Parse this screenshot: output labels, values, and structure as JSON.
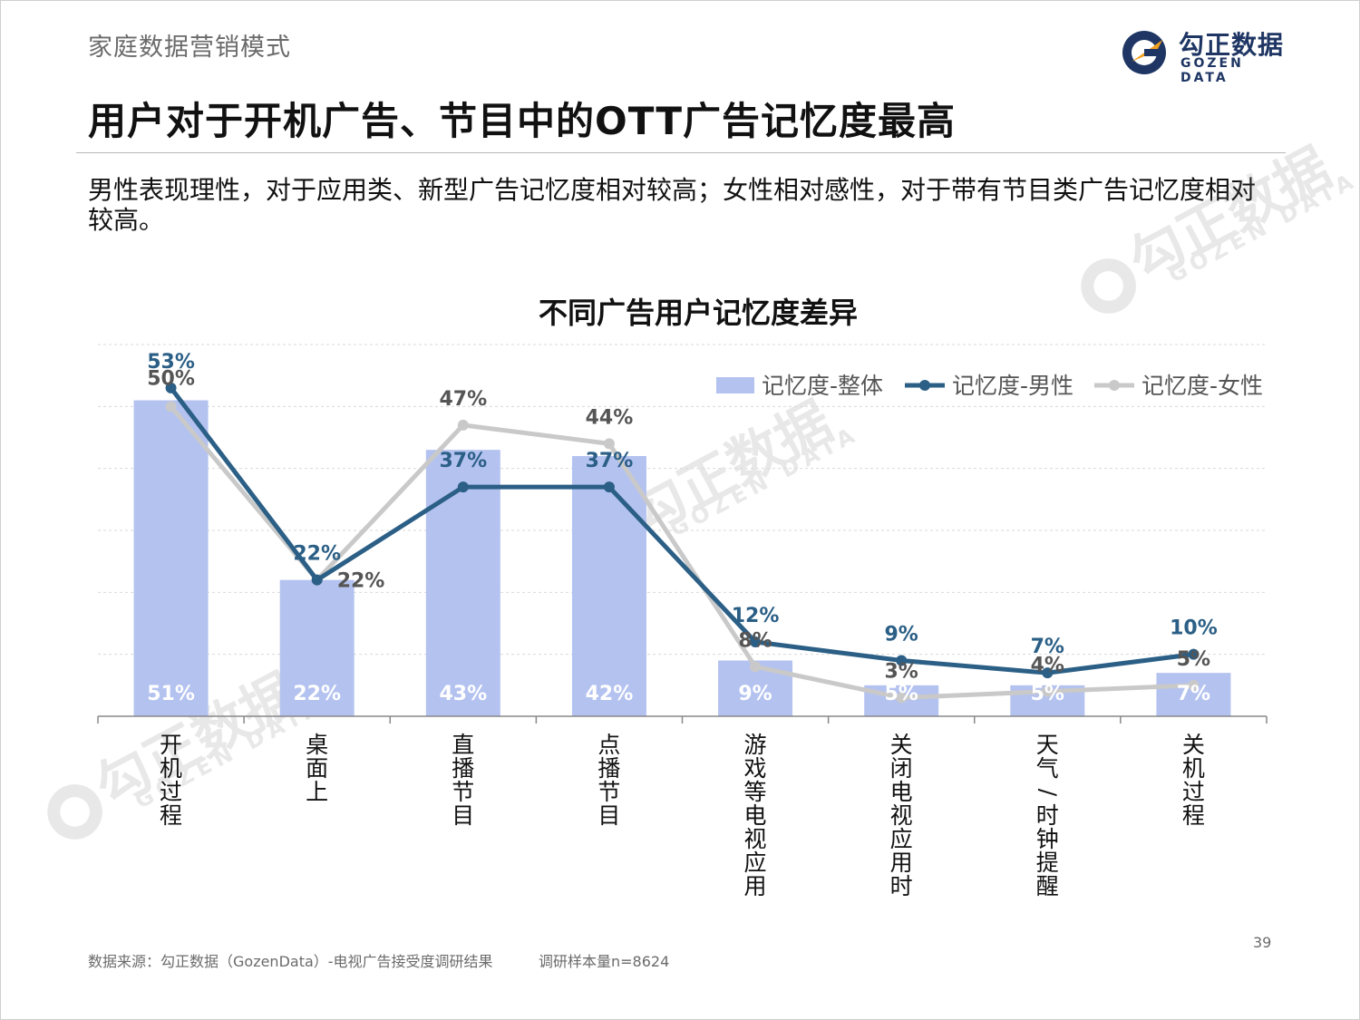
{
  "header": {
    "section_label": "家庭数据营销模式",
    "logo_cn": "勾正数据",
    "logo_en": "GOZEN DATA"
  },
  "title": "用户对于开机广告、节目中的OTT广告记忆度最高",
  "description": "男性表现理性，对于应用类、新型广告记忆度相对较高；女性相对感性，对于带有节目类广告记忆度相对较高。",
  "watermark": {
    "cn": "勾正数据",
    "en": "GOZEN DATA"
  },
  "footer": {
    "source": "数据来源：勾正数据（GozenData）-电视广告接受度调研结果",
    "sample": "调研样本量n=8624",
    "page_number": "39"
  },
  "colors": {
    "bar": "#b4c2f0",
    "male": "#2b5f86",
    "female": "#c9c9c9",
    "brand": "#1f3664",
    "brand_accent": "#f0a020"
  },
  "chart_data": {
    "type": "bar",
    "title": "不同广告用户记忆度差异",
    "categories": [
      "开机过程",
      "桌面上",
      "直播节目",
      "点播节目",
      "游戏等电视应用",
      "关闭电视应用时",
      "天气/时钟提醒",
      "关机过程"
    ],
    "series": [
      {
        "name": "记忆度-整体",
        "type": "bar",
        "values": [
          51,
          22,
          43,
          42,
          9,
          5,
          5,
          7
        ],
        "labels": [
          "51%",
          "22%",
          "43%",
          "42%",
          "9%",
          "5%",
          "5%",
          "7%"
        ]
      },
      {
        "name": "记忆度-男性",
        "type": "line",
        "values": [
          53,
          22,
          37,
          37,
          12,
          9,
          7,
          10
        ],
        "labels": [
          "53%",
          "22%",
          "37%",
          "37%",
          "12%",
          "9%",
          "7%",
          "10%"
        ]
      },
      {
        "name": "记忆度-女性",
        "type": "line",
        "values": [
          50,
          22,
          47,
          44,
          8,
          3,
          4,
          5
        ],
        "labels": [
          "50%",
          "22%",
          "47%",
          "44%",
          "8%",
          "3%",
          "4%",
          "5%"
        ]
      }
    ],
    "ylim": [
      0,
      60
    ],
    "grid": true,
    "legend_position": "top-right"
  }
}
